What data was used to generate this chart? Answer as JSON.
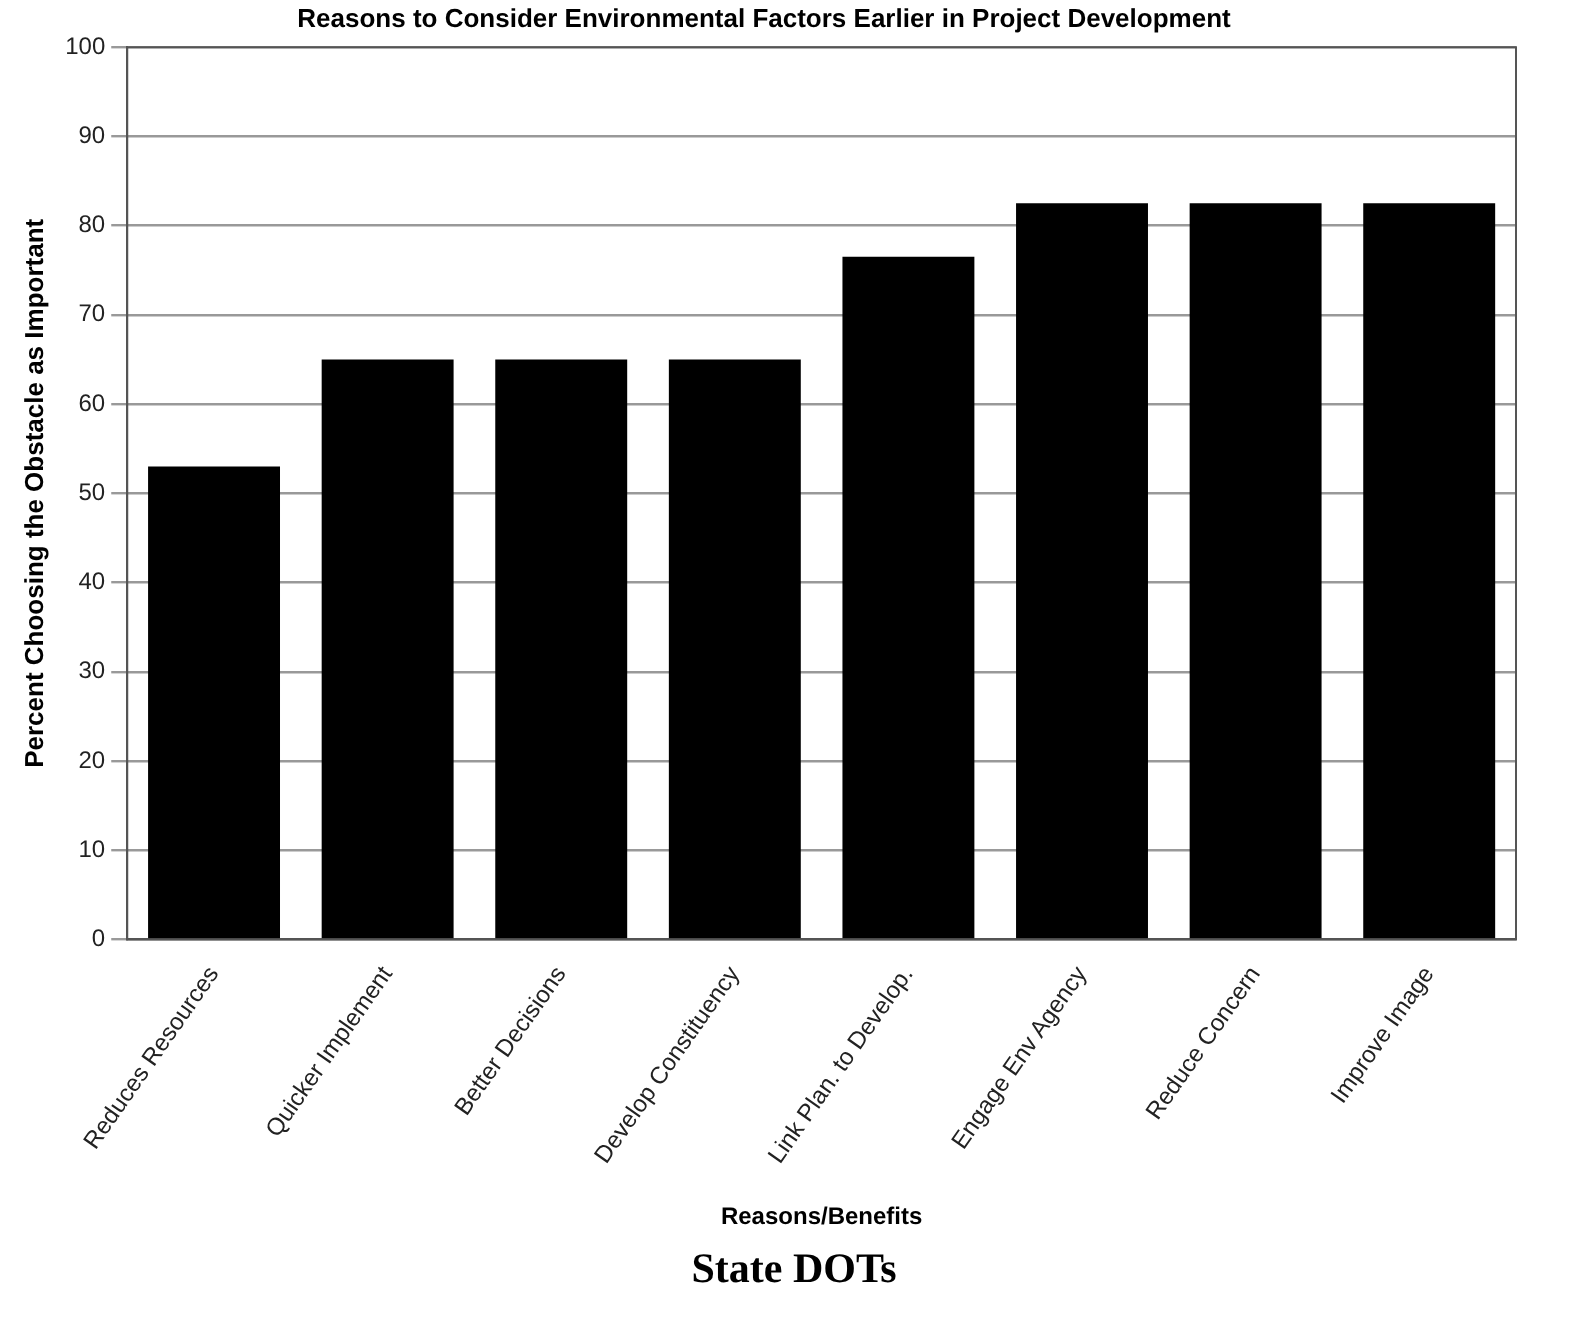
{
  "chart_data": {
    "type": "bar",
    "title": "Reasons to Consider Environmental Factors Earlier in Project Development",
    "xlabel": "Reasons/Benefits",
    "ylabel": "Percent Choosing the Obstacle as Important",
    "categories": [
      "Reduces Resources",
      "Quicker Implement",
      "Better Decisions",
      "Develop Constituency",
      "Link Plan. to Develop.",
      "Engage Env Agency",
      "Reduce Concern",
      "Improve Image"
    ],
    "values": [
      53,
      65,
      65,
      65,
      76.5,
      82.5,
      82.5,
      82.5
    ],
    "color": "#000000",
    "ylim": [
      0,
      100
    ],
    "yticks": [
      0,
      10,
      20,
      30,
      40,
      50,
      60,
      70,
      80,
      90,
      100
    ],
    "grid": "y",
    "legend": false,
    "annotations": [
      "State DOTs"
    ]
  }
}
